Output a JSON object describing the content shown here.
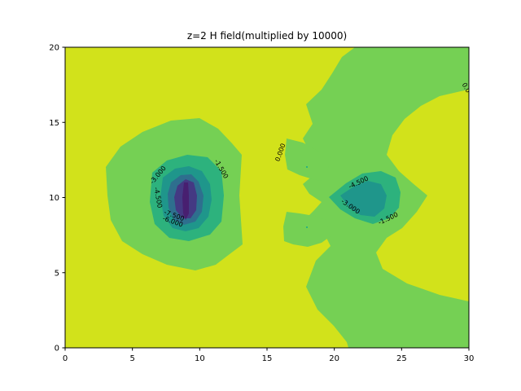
{
  "chart_data": {
    "type": "contour",
    "title": "z=2 H field(multiplied by 10000)",
    "xlabel": "",
    "ylabel": "",
    "xlim": [
      0,
      30
    ],
    "ylim": [
      0,
      20
    ],
    "x_ticks": [
      "0",
      "5",
      "10",
      "15",
      "20",
      "25",
      "30"
    ],
    "y_ticks": [
      "0",
      "5",
      "10",
      "15",
      "20"
    ],
    "grid": false,
    "colors": {
      "background_level": "#d2e21b",
      "level_0": "#75d054",
      "level_neg_1_5": "#2db27d",
      "level_neg_3_0": "#1f968b",
      "level_neg_4_5": "#2e6f8e",
      "level_neg_6_0": "#443983",
      "level_min": "#481f70"
    },
    "contour_labels": [
      {
        "text": "-3.000",
        "x": 6.9,
        "y": 11.5,
        "angle": -50
      },
      {
        "text": "-1.500",
        "x": 11.6,
        "y": 11.9,
        "angle": 60
      },
      {
        "text": "-4.500",
        "x": 6.9,
        "y": 10.0,
        "angle": 80
      },
      {
        "text": "-7.500",
        "x": 8.1,
        "y": 8.8,
        "angle": 20
      },
      {
        "text": "-6.000",
        "x": 8.0,
        "y": 8.4,
        "angle": 20
      },
      {
        "text": "0.000",
        "x": 16.0,
        "y": 13.0,
        "angle": -70
      },
      {
        "text": "-4.500",
        "x": 21.8,
        "y": 11.0,
        "angle": -25
      },
      {
        "text": "-3.000",
        "x": 21.2,
        "y": 9.4,
        "angle": 35
      },
      {
        "text": "-1.500",
        "x": 24.0,
        "y": 8.6,
        "angle": -25
      },
      {
        "text": "0.0",
        "x": 29.8,
        "y": 17.3,
        "angle": 60
      }
    ]
  }
}
